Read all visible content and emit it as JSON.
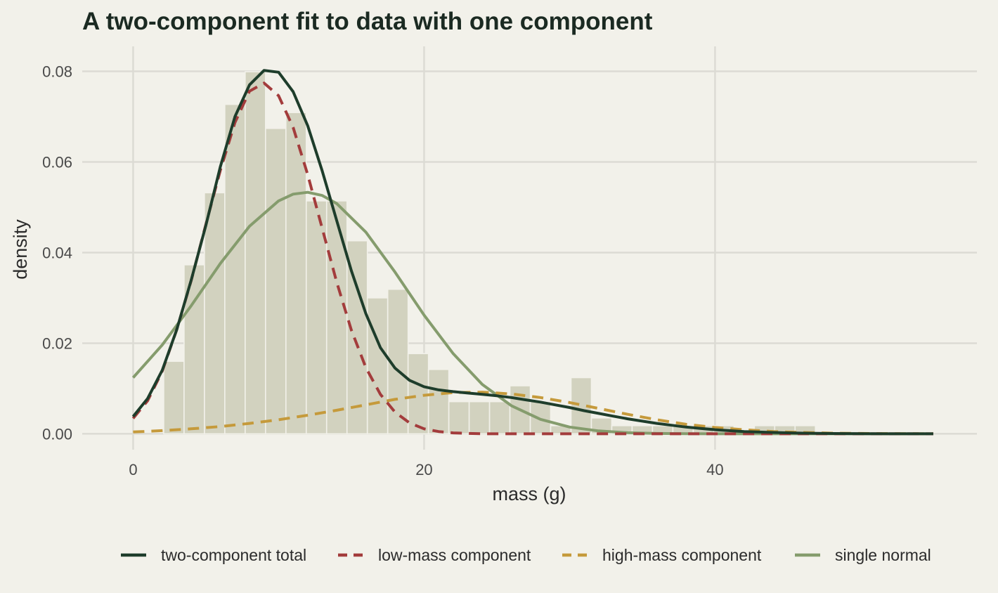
{
  "chart_data": {
    "type": "bar",
    "title": "A two-component fit to data with one component",
    "xlabel": "mass (g)",
    "ylabel": "density",
    "xlim": [
      -3.5,
      58
    ],
    "ylim": [
      -0.0035,
      0.0855
    ],
    "x_ticks": [
      0,
      20,
      40
    ],
    "y_ticks": [
      0.0,
      0.02,
      0.04,
      0.06,
      0.08
    ],
    "x_tick_labels": [
      "0",
      "20",
      "40"
    ],
    "y_tick_labels": [
      "0.00",
      "0.02",
      "0.04",
      "0.06",
      "0.08"
    ],
    "grid": true,
    "legend_position": "bottom",
    "histogram": {
      "bin_width": 1.4,
      "start": 2.1,
      "densities": [
        0.016,
        0.0373,
        0.0532,
        0.0727,
        0.0799,
        0.0674,
        0.0709,
        0.0514,
        0.0514,
        0.0426,
        0.03,
        0.0319,
        0.0177,
        0.0142,
        0.0071,
        0.0071,
        0.0071,
        0.0106,
        0.0071,
        0.0018,
        0.0124,
        0.0035,
        0.0018,
        0.0018,
        0.0018,
        0.0018,
        0.0018,
        0.0018,
        0.0,
        0.0018,
        0.0018,
        0.0018
      ]
    },
    "series": [
      {
        "name": "two-component total",
        "color": "#1e3d2b",
        "dash": "solid",
        "x": [
          0,
          1,
          2,
          3,
          4,
          5,
          6,
          7,
          8,
          9,
          10,
          11,
          12,
          13,
          14,
          15,
          16,
          17,
          18,
          19,
          20,
          21,
          22,
          23,
          24,
          25,
          26,
          27,
          28,
          29,
          30,
          31,
          32,
          33,
          34,
          35,
          36,
          37,
          38,
          39,
          40,
          42,
          44,
          46,
          48,
          50,
          52,
          55
        ],
        "y": [
          0.0038,
          0.0078,
          0.014,
          0.023,
          0.034,
          0.046,
          0.059,
          0.07,
          0.077,
          0.0802,
          0.0798,
          0.0755,
          0.068,
          0.058,
          0.047,
          0.036,
          0.0265,
          0.019,
          0.0145,
          0.0118,
          0.0104,
          0.0097,
          0.0093,
          0.009,
          0.0087,
          0.0084,
          0.008,
          0.0075,
          0.007,
          0.0064,
          0.0058,
          0.0051,
          0.0045,
          0.0039,
          0.0033,
          0.0028,
          0.0023,
          0.0019,
          0.0015,
          0.0012,
          0.0009,
          0.0005,
          0.0003,
          0.00015,
          7e-05,
          3e-05,
          1e-05,
          0.0
        ]
      },
      {
        "name": "low-mass component",
        "color": "#a33c3c",
        "dash": "dashed",
        "x": [
          0,
          1,
          2,
          3,
          4,
          5,
          6,
          7,
          8,
          9,
          10,
          11,
          12,
          13,
          14,
          15,
          16,
          17,
          18,
          19,
          20,
          21,
          22,
          23,
          24,
          25,
          26,
          27,
          28,
          30,
          35,
          40,
          45,
          55
        ],
        "y": [
          0.0034,
          0.0073,
          0.0138,
          0.023,
          0.0339,
          0.0462,
          0.0582,
          0.0687,
          0.0756,
          0.0774,
          0.0746,
          0.0676,
          0.0572,
          0.0453,
          0.0334,
          0.0229,
          0.0146,
          0.0087,
          0.0048,
          0.0024,
          0.0011,
          0.0005,
          0.0002,
          0.0001,
          0.0,
          0.0,
          0.0,
          0.0,
          0.0,
          0.0,
          0.0,
          0.0,
          0.0,
          0.0
        ]
      },
      {
        "name": "high-mass component",
        "color": "#c59a3b",
        "dash": "dashed",
        "x": [
          0,
          2,
          4,
          6,
          8,
          10,
          12,
          14,
          16,
          18,
          20,
          22,
          24,
          26,
          28,
          30,
          32,
          34,
          36,
          38,
          40,
          42,
          44,
          46,
          48,
          50,
          52,
          55
        ],
        "y": [
          0.0004,
          0.0007,
          0.0011,
          0.0016,
          0.0023,
          0.0031,
          0.0041,
          0.0052,
          0.0064,
          0.0076,
          0.0085,
          0.0091,
          0.0092,
          0.0088,
          0.008,
          0.0069,
          0.0056,
          0.0043,
          0.0031,
          0.0021,
          0.0014,
          0.0009,
          0.0005,
          0.0003,
          0.00015,
          8e-05,
          4e-05,
          0.0
        ]
      },
      {
        "name": "single normal",
        "color": "#859c6d",
        "dash": "solid",
        "x": [
          0,
          2,
          4,
          6,
          8,
          10,
          11,
          12,
          13,
          14,
          16,
          18,
          20,
          22,
          24,
          26,
          28,
          30,
          32,
          34,
          36,
          38,
          40,
          44,
          48,
          52,
          55
        ],
        "y": [
          0.0124,
          0.0196,
          0.0283,
          0.0376,
          0.0458,
          0.0514,
          0.0529,
          0.0533,
          0.0526,
          0.0508,
          0.0445,
          0.0357,
          0.0262,
          0.0177,
          0.0109,
          0.0062,
          0.0032,
          0.0015,
          0.00064,
          0.00024,
          8e-05,
          3e-05,
          1e-05,
          0.0,
          0.0,
          0.0,
          0.0
        ]
      }
    ]
  }
}
